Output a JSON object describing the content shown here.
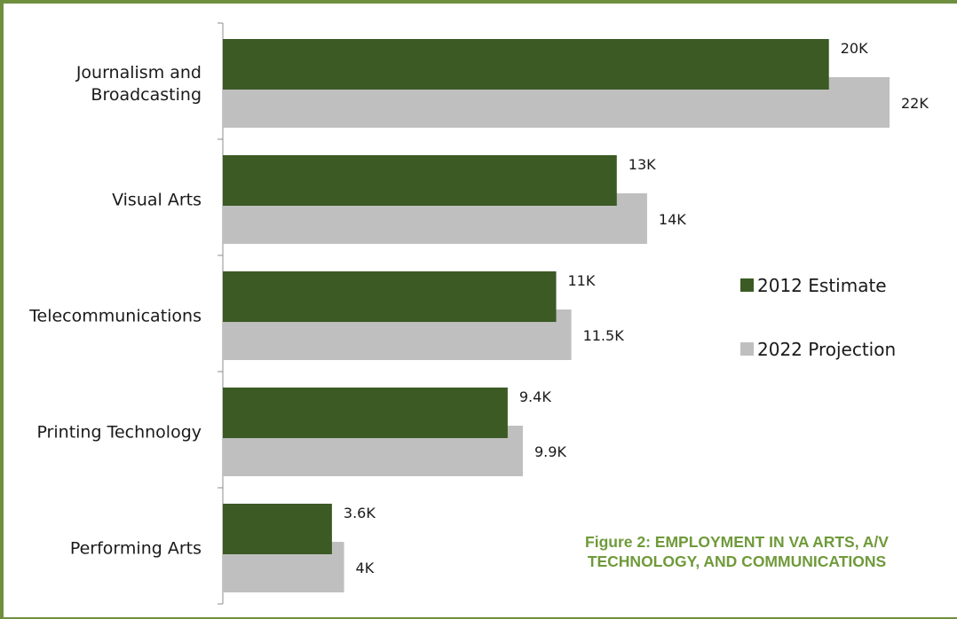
{
  "colors": {
    "frame": "#6f8f3f",
    "series_2012": "#3b5a24",
    "series_2022": "#bfbfbf",
    "caption": "#6f9a3a"
  },
  "caption": {
    "line1": "Figure 2:   EMPLOYMENT IN VA ARTS, A/V",
    "line2": "TECHNOLOGY, AND COMMUNICATIONS"
  },
  "chart_data": {
    "type": "bar",
    "orientation": "horizontal",
    "categories": [
      [
        "Journalism and",
        "Broadcasting"
      ],
      [
        "Visual Arts"
      ],
      [
        "Telecommunications"
      ],
      [
        "Printing Technology"
      ],
      [
        "Performing Arts"
      ]
    ],
    "series": [
      {
        "name": "2012 Estimate",
        "color": "#3b5a24",
        "values": [
          20000,
          13000,
          11000,
          9400,
          3600
        ],
        "labels": [
          "20K",
          "13K",
          "11K",
          "9.4K",
          "3.6K"
        ]
      },
      {
        "name": "2022 Projection",
        "color": "#bfbfbf",
        "values": [
          22000,
          14000,
          11500,
          9900,
          4000
        ],
        "labels": [
          "22K",
          "14K",
          "11.5K",
          "9.9K",
          "4K"
        ]
      }
    ],
    "xlim": [
      0,
      22000
    ],
    "grid": false,
    "legend": "right"
  }
}
